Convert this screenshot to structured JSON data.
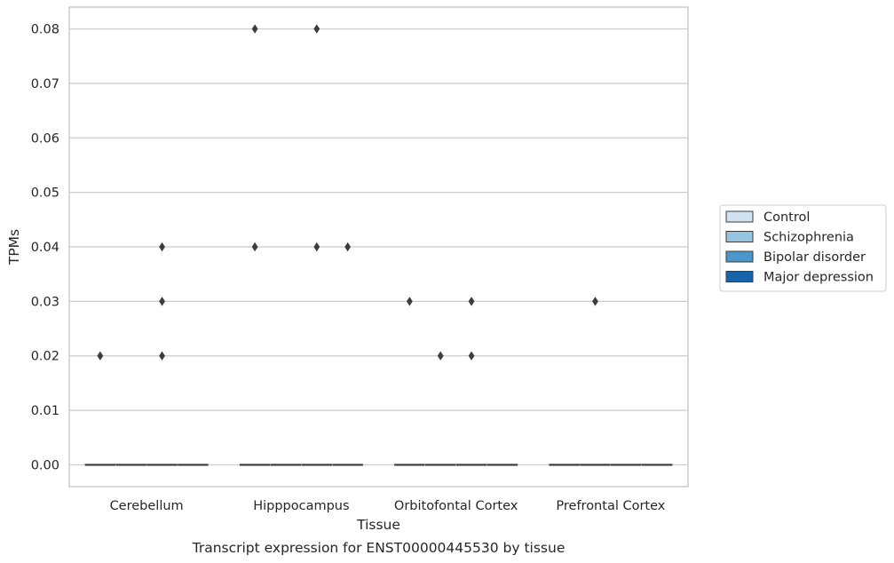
{
  "chart_data": {
    "type": "box",
    "title": "Transcript expression for ENST00000445530 by tissue",
    "xlabel": "Tissue",
    "ylabel": "TPMs",
    "ylim": [
      -0.004,
      0.084
    ],
    "yticks": [
      "0.00",
      "0.01",
      "0.02",
      "0.03",
      "0.04",
      "0.05",
      "0.06",
      "0.07",
      "0.08"
    ],
    "grid": "horizontal",
    "legend_position": "right",
    "categories": [
      "Cerebellum",
      "Hipppocampus",
      "Orbitofontal Cortex",
      "Prefrontal Cortex"
    ],
    "series": [
      {
        "name": "Control",
        "color": "#d0e1f2"
      },
      {
        "name": "Schizophrenia",
        "color": "#94c4df"
      },
      {
        "name": "Bipolar disorder",
        "color": "#4a98c9"
      },
      {
        "name": "Major depression",
        "color": "#1764ab"
      }
    ],
    "boxes_median": 0.0,
    "outliers": [
      {
        "category": "Cerebellum",
        "series": "Control",
        "values": [
          0.02
        ]
      },
      {
        "category": "Cerebellum",
        "series": "Bipolar disorder",
        "values": [
          0.04,
          0.03,
          0.02
        ]
      },
      {
        "category": "Hipppocampus",
        "series": "Control",
        "values": [
          0.08,
          0.04
        ]
      },
      {
        "category": "Hipppocampus",
        "series": "Bipolar disorder",
        "values": [
          0.08,
          0.04
        ]
      },
      {
        "category": "Hipppocampus",
        "series": "Major depression",
        "values": [
          0.04
        ]
      },
      {
        "category": "Orbitofontal Cortex",
        "series": "Control",
        "values": [
          0.03
        ]
      },
      {
        "category": "Orbitofontal Cortex",
        "series": "Schizophrenia",
        "values": [
          0.02
        ]
      },
      {
        "category": "Orbitofontal Cortex",
        "series": "Bipolar disorder",
        "values": [
          0.03,
          0.02
        ]
      },
      {
        "category": "Prefrontal Cortex",
        "series": "Schizophrenia",
        "values": [
          0.03
        ]
      }
    ]
  }
}
